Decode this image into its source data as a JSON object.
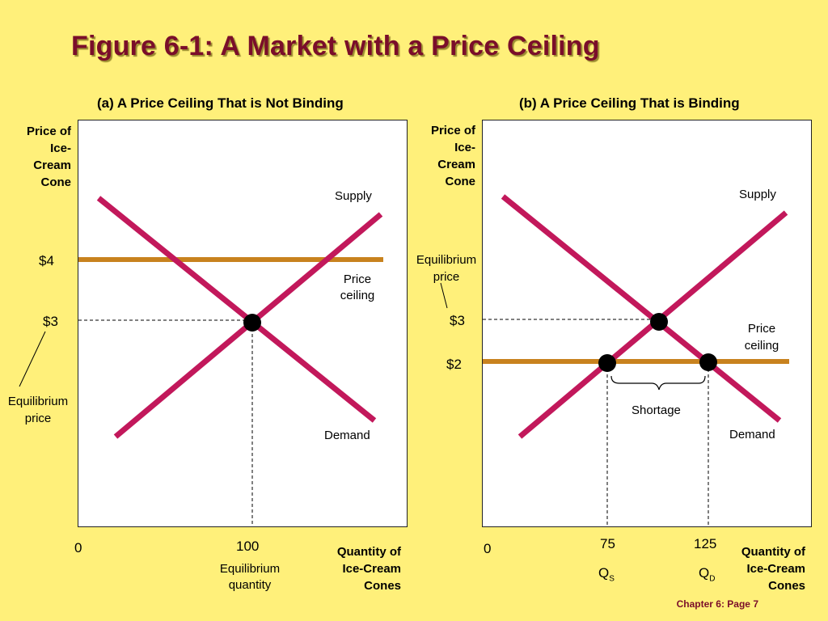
{
  "title": "Figure 6-1: A Market with a Price Ceiling",
  "footer": "Chapter 6: Page 7",
  "colors": {
    "background": "#FFF07A",
    "curve": "#C2185B",
    "ceiling": "#C8821E",
    "title": "#7A0E2A"
  },
  "panel_a": {
    "title": "(a) A Price Ceiling That is Not Binding",
    "y_axis_title": "Price of\nIce-Cream\nCone",
    "x_axis_title": "Quantity of\nIce-Cream\nCones",
    "supply_label": "Supply",
    "demand_label": "Demand",
    "ceiling_label": "Price\nceiling",
    "price_ceiling": "$4",
    "equilibrium_price": "$3",
    "equilibrium_price_label": "Equilibrium\nprice",
    "origin": "0",
    "equilibrium_quantity": "100",
    "equilibrium_quantity_label": "Equilibrium\nquantity"
  },
  "panel_b": {
    "title": "(b) A Price Ceiling That is Binding",
    "y_axis_title": "Price of\nIce-Cream\nCone",
    "x_axis_title": "Quantity of\nIce-Cream\nCones",
    "supply_label": "Supply",
    "demand_label": "Demand",
    "ceiling_label": "Price\nceiling",
    "equilibrium_price_label": "Equilibrium\nprice",
    "equilibrium_price": "$3",
    "price_ceiling": "$2",
    "shortage_label": "Shortage",
    "origin": "0",
    "quantity_supplied": "75",
    "quantity_demanded": "125",
    "qs_label": "Q",
    "qs_sub": "S",
    "qd_label": "Q",
    "qd_sub": "D"
  }
}
